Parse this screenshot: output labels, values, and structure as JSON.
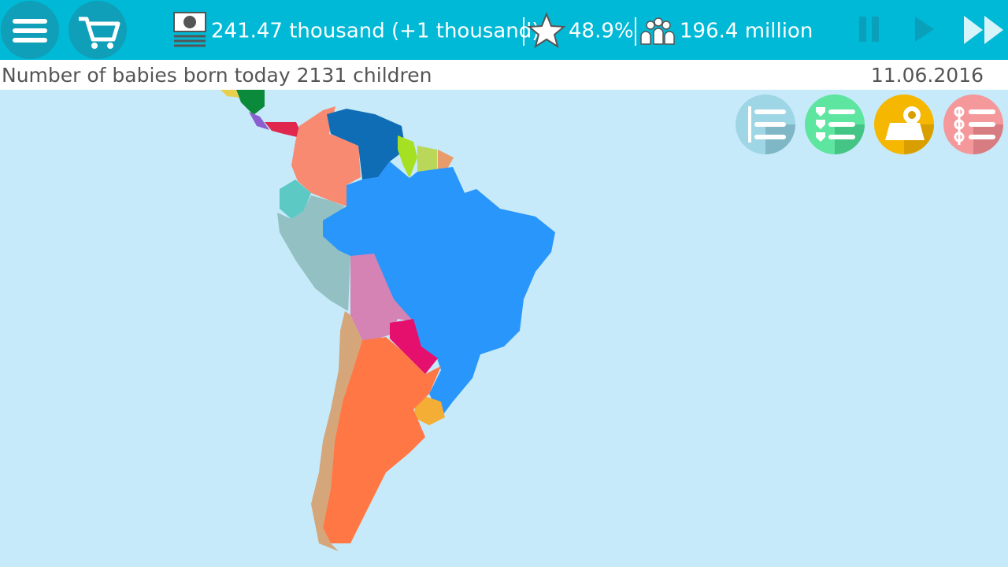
{
  "toolbar": {
    "money": "241.47 thousand (+1 thousand)",
    "rating": "48.9%",
    "population": "196.4 million"
  },
  "status": {
    "message": "Number of babies born today 2131 children",
    "date": "11.06.2016"
  }
}
